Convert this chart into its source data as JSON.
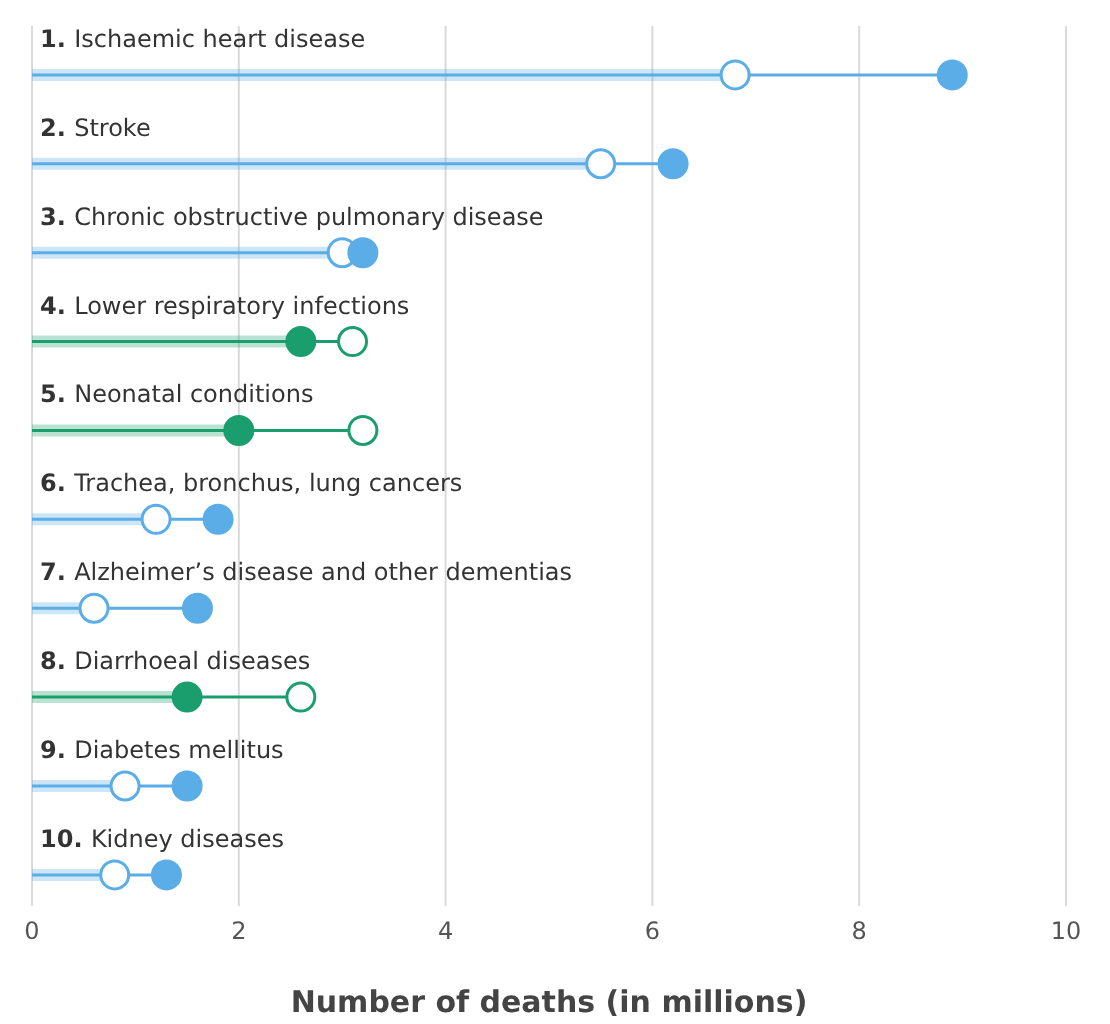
{
  "chart_data": {
    "type": "lollipop",
    "orientation": "horizontal",
    "xlabel": "Number of deaths (in millions)",
    "categories": [
      "1. Ischaemic heart disease",
      "2. Stroke",
      "3. Chronic obstructive pulmonary disease",
      "4. Lower respiratory infections",
      "5. Neonatal conditions",
      "6. Trachea, bronchus, lung cancers",
      "7. Alzheimer’s disease and other dementias",
      "8. Diarrhoeal diseases",
      "9. Diabetes mellitus",
      "10. Kidney diseases"
    ],
    "series": [
      {
        "colors": [
          "#5aade6",
          "#5aade6",
          "#5aade6",
          "#1a9e6e",
          "#1a9e6e",
          "#5aade6",
          "#5aade6",
          "#1a9e6e",
          "#5aade6",
          "#5aade6"
        ],
        "values": [
          6.8,
          5.5,
          3.0,
          3.1,
          3.2,
          1.2,
          0.6,
          2.6,
          0.9,
          0.8
        ]
      },
      {
        "colors": [
          "#5aade6",
          "#5aade6",
          "#5aade6",
          "#1a9e6e",
          "#1a9e6e",
          "#5aade6",
          "#5aade6",
          "#1a9e6e",
          "#5aade6",
          "#5aade6"
        ],
        "values": [
          8.9,
          6.2,
          3.2,
          2.6,
          2.0,
          1.8,
          1.6,
          1.5,
          1.5,
          1.3
        ]
      }
    ],
    "xlim": [
      0,
      10
    ],
    "xticks": [
      0,
      2,
      4,
      6,
      8,
      10
    ],
    "grid": "x",
    "marker": "circle"
  }
}
